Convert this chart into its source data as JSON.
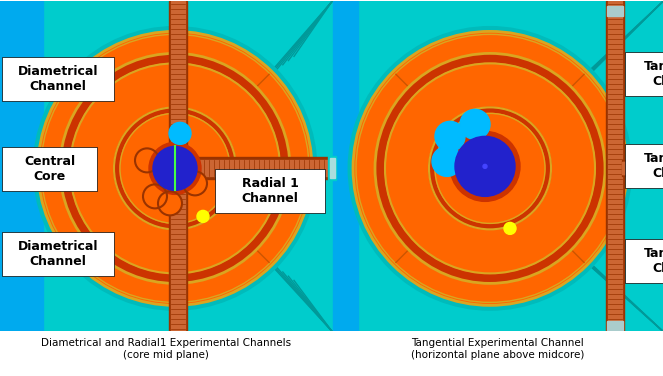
{
  "fig_width": 6.63,
  "fig_height": 3.76,
  "bg_teal": "#00CCCC",
  "bg_light_blue": "#00AAEE",
  "orange_core": "#FF6600",
  "dark_orange_ring": "#CC3300",
  "gold": "#DAA520",
  "blue_core": "#2222CC",
  "cyan_circle": "#00BBFF",
  "yellow_dot": "#FFFF00",
  "white": "#FFFFFF",
  "brown_dark": "#993300",
  "brown_mid": "#CC6633",
  "brown_light": "#DD8844",
  "caption1": "Diametrical and Radial1 Experimental Channels\n(core mid plane)",
  "caption2": "Tangential Experimental Channel\n(horizontal plane above midcore)",
  "label_diametrical_top": "Diametrical\nChannel",
  "label_diametrical_bot": "Diametrical\nChannel",
  "label_central": "Central\nCore",
  "label_radial": "Radial 1\nChannel",
  "label_tangential_top": "Tangential\nChannel",
  "label_tangential_mid": "Tangential\nChannel",
  "label_tangential_bot": "Tangential\nChannel"
}
